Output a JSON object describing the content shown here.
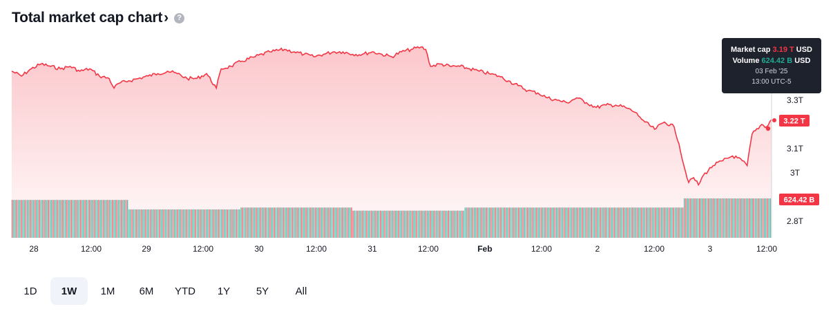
{
  "header": {
    "title": "Total market cap chart",
    "chevron": "›",
    "help_icon": "?"
  },
  "tooltip": {
    "mcap_label": "Market cap",
    "mcap_value": "3.19 T",
    "mcap_unit": "USD",
    "vol_label": "Volume",
    "vol_value": "624.42 B",
    "vol_unit": "USD",
    "date": "03 Feb '25",
    "time": "13:00 UTC-5"
  },
  "badges": {
    "price": "3.22 T",
    "volume": "624.42 B"
  },
  "tabs": [
    {
      "label": "1D",
      "active": false
    },
    {
      "label": "1W",
      "active": true
    },
    {
      "label": "1M",
      "active": false
    },
    {
      "label": "6M",
      "active": false
    },
    {
      "label": "YTD",
      "active": false
    },
    {
      "label": "1Y",
      "active": false
    },
    {
      "label": "5Y",
      "active": false
    },
    {
      "label": "All",
      "active": false
    }
  ],
  "colors": {
    "line": "#f23645",
    "fill": "#f23645",
    "vol_green": "#22ab94",
    "vol_red": "#f23645",
    "badge": "#f23645"
  },
  "chart_data": {
    "type": "area",
    "xlabel": "",
    "ylabel": "",
    "x_ticks": [
      "28",
      "12:00",
      "29",
      "12:00",
      "30",
      "12:00",
      "31",
      "12:00",
      "Feb",
      "12:00",
      "2",
      "12:00",
      "3",
      "12:00"
    ],
    "y_ticks": [
      "2.8T",
      "3T",
      "3.1T",
      "3.3T"
    ],
    "y_tick_values": [
      2.8,
      3.0,
      3.1,
      3.3
    ],
    "ylim": [
      2.74,
      3.54
    ],
    "market_cap_series": {
      "unit": "T USD",
      "points": [
        [
          0,
          3.42
        ],
        [
          2,
          3.4
        ],
        [
          4,
          3.43
        ],
        [
          6,
          3.45
        ],
        [
          8,
          3.44
        ],
        [
          10,
          3.43
        ],
        [
          12,
          3.44
        ],
        [
          14,
          3.42
        ],
        [
          16,
          3.43
        ],
        [
          18,
          3.4
        ],
        [
          20,
          3.39
        ],
        [
          21,
          3.35
        ],
        [
          22,
          3.37
        ],
        [
          24,
          3.38
        ],
        [
          26,
          3.39
        ],
        [
          28,
          3.4
        ],
        [
          30,
          3.41
        ],
        [
          32,
          3.42
        ],
        [
          34,
          3.41
        ],
        [
          36,
          3.39
        ],
        [
          38,
          3.39
        ],
        [
          40,
          3.41
        ],
        [
          42,
          3.35
        ],
        [
          43,
          3.43
        ],
        [
          45,
          3.44
        ],
        [
          47,
          3.46
        ],
        [
          50,
          3.48
        ],
        [
          53,
          3.5
        ],
        [
          56,
          3.51
        ],
        [
          58,
          3.5
        ],
        [
          60,
          3.49
        ],
        [
          62,
          3.48
        ],
        [
          64,
          3.49
        ],
        [
          66,
          3.5
        ],
        [
          68,
          3.5
        ],
        [
          70,
          3.49
        ],
        [
          72,
          3.49
        ],
        [
          74,
          3.5
        ],
        [
          76,
          3.49
        ],
        [
          78,
          3.48
        ],
        [
          80,
          3.5
        ],
        [
          82,
          3.51
        ],
        [
          84,
          3.52
        ],
        [
          85,
          3.51
        ],
        [
          86,
          3.44
        ],
        [
          88,
          3.45
        ],
        [
          90,
          3.44
        ],
        [
          92,
          3.44
        ],
        [
          94,
          3.43
        ],
        [
          96,
          3.42
        ],
        [
          98,
          3.41
        ],
        [
          100,
          3.4
        ],
        [
          102,
          3.38
        ],
        [
          104,
          3.36
        ],
        [
          106,
          3.34
        ],
        [
          108,
          3.33
        ],
        [
          110,
          3.31
        ],
        [
          112,
          3.3
        ],
        [
          114,
          3.29
        ],
        [
          116,
          3.31
        ],
        [
          118,
          3.29
        ],
        [
          120,
          3.27
        ],
        [
          122,
          3.28
        ],
        [
          124,
          3.28
        ],
        [
          126,
          3.27
        ],
        [
          128,
          3.25
        ],
        [
          129,
          3.23
        ],
        [
          130,
          3.21
        ],
        [
          132,
          3.18
        ],
        [
          134,
          3.21
        ],
        [
          136,
          3.19
        ],
        [
          137,
          3.12
        ],
        [
          138,
          3.03
        ],
        [
          139,
          2.96
        ],
        [
          140,
          2.98
        ],
        [
          141,
          2.95
        ],
        [
          142,
          2.99
        ],
        [
          144,
          3.03
        ],
        [
          146,
          3.05
        ],
        [
          148,
          3.07
        ],
        [
          150,
          3.05
        ],
        [
          151,
          3.03
        ],
        [
          152,
          3.16
        ],
        [
          154,
          3.2
        ],
        [
          155,
          3.19
        ],
        [
          156,
          3.22
        ]
      ]
    },
    "volume_series": {
      "unit": "B USD",
      "segments": [
        {
          "from": 0,
          "to": 24,
          "value": 600
        },
        {
          "from": 24,
          "to": 47,
          "value": 450
        },
        {
          "from": 47,
          "to": 70,
          "value": 480
        },
        {
          "from": 70,
          "to": 93,
          "value": 430
        },
        {
          "from": 93,
          "to": 138,
          "value": 480
        },
        {
          "from": 138,
          "to": 156,
          "value": 624.42
        }
      ]
    }
  }
}
